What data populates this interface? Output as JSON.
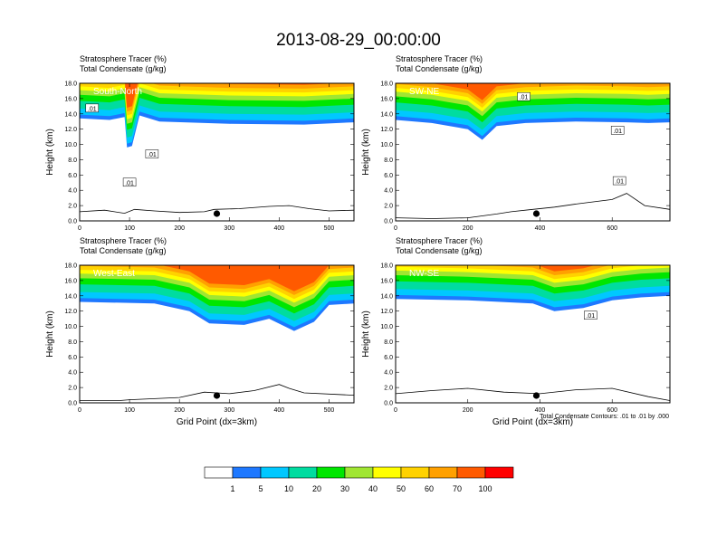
{
  "figure": {
    "title": "2013-08-29_00:00:00",
    "footnote": "Total Condensate Contours: .01 to .01 by .000"
  },
  "colors": {
    "levels": [
      "#ffffff",
      "#1e78ff",
      "#00c8ff",
      "#00dca0",
      "#00e600",
      "#a0e632",
      "#ffff00",
      "#ffd200",
      "#ffa000",
      "#ff5a00",
      "#ff0000"
    ]
  },
  "colorbar": {
    "labels": [
      "1",
      "5",
      "10",
      "20",
      "30",
      "40",
      "50",
      "60",
      "70",
      "100"
    ]
  },
  "chart_data": [
    {
      "type": "heatmap",
      "name": "South-North",
      "subtitle_1": "Stratosphere Tracer   (%)",
      "subtitle_2": "Total Condensate   (g/kg)",
      "ylabel": "Height (km)",
      "xlabel": "",
      "xlim": [
        0,
        550
      ],
      "ylim": [
        0,
        18
      ],
      "xticks": [
        "0",
        "100",
        "200",
        "300",
        "400",
        "500"
      ],
      "xtick_values": [
        0,
        100,
        200,
        300,
        400,
        500
      ],
      "yticks": [
        "0.0",
        "2.0",
        "4.0",
        "6.0",
        "8.0",
        "10.0",
        "12.0",
        "14.0",
        "16.0",
        "18.0"
      ],
      "tracer_base_km": [
        [
          0,
          13.4
        ],
        [
          60,
          13.2
        ],
        [
          90,
          13.6
        ],
        [
          95,
          9.6
        ],
        [
          105,
          9.8
        ],
        [
          120,
          13.8
        ],
        [
          160,
          13.0
        ],
        [
          300,
          12.7
        ],
        [
          450,
          12.6
        ],
        [
          550,
          12.9
        ]
      ],
      "terrain_km": [
        [
          0,
          1.2
        ],
        [
          50,
          1.4
        ],
        [
          90,
          1.0
        ],
        [
          110,
          1.5
        ],
        [
          150,
          1.3
        ],
        [
          200,
          1.1
        ],
        [
          250,
          1.2
        ],
        [
          270,
          1.5
        ],
        [
          320,
          1.6
        ],
        [
          380,
          1.9
        ],
        [
          420,
          2.0
        ],
        [
          460,
          1.6
        ],
        [
          500,
          1.3
        ],
        [
          550,
          1.4
        ]
      ],
      "contour_labels": [
        ".01",
        ".01",
        ".01"
      ],
      "contour_label_pos": [
        [
          25,
          14.7
        ],
        [
          100,
          5.0
        ],
        [
          145,
          8.7
        ]
      ],
      "marker_x": 275
    },
    {
      "type": "heatmap",
      "name": "SW-NE",
      "subtitle_1": "Stratosphere Tracer   (%)",
      "subtitle_2": "Total Condensate   (g/kg)",
      "ylabel": "Height (km)",
      "xlabel": "",
      "xlim": [
        0,
        760
      ],
      "ylim": [
        0,
        18
      ],
      "xticks": [
        "0",
        "200",
        "400",
        "600"
      ],
      "xtick_values": [
        0,
        200,
        400,
        600
      ],
      "yticks": [
        "0.0",
        "2.0",
        "4.0",
        "6.0",
        "8.0",
        "10.0",
        "12.0",
        "14.0",
        "16.0",
        "18.0"
      ],
      "tracer_base_km": [
        [
          0,
          13.2
        ],
        [
          100,
          12.8
        ],
        [
          200,
          12.0
        ],
        [
          240,
          10.6
        ],
        [
          280,
          12.4
        ],
        [
          360,
          12.8
        ],
        [
          500,
          13.0
        ],
        [
          640,
          12.9
        ],
        [
          700,
          12.8
        ],
        [
          760,
          12.9
        ]
      ],
      "terrain_km": [
        [
          0,
          0.4
        ],
        [
          100,
          0.3
        ],
        [
          200,
          0.4
        ],
        [
          280,
          0.9
        ],
        [
          320,
          1.2
        ],
        [
          380,
          1.5
        ],
        [
          440,
          1.8
        ],
        [
          500,
          2.2
        ],
        [
          600,
          2.8
        ],
        [
          640,
          3.6
        ],
        [
          690,
          2.0
        ],
        [
          760,
          1.5
        ]
      ],
      "contour_labels": [
        ".01",
        ".01",
        ".01"
      ],
      "contour_label_pos": [
        [
          355,
          16.2
        ],
        [
          615,
          11.8
        ],
        [
          620,
          5.2
        ]
      ],
      "marker_x": 390
    },
    {
      "type": "heatmap",
      "name": "West-East",
      "subtitle_1": "Stratosphere Tracer   (%)",
      "subtitle_2": "Total Condensate   (g/kg)",
      "ylabel": "Height (km)",
      "xlabel": "Grid Point (dx=3km)",
      "xlim": [
        0,
        550
      ],
      "ylim": [
        0,
        18
      ],
      "xticks": [
        "0",
        "100",
        "200",
        "300",
        "400",
        "500"
      ],
      "xtick_values": [
        0,
        100,
        200,
        300,
        400,
        500
      ],
      "yticks": [
        "0.0",
        "2.0",
        "4.0",
        "6.0",
        "8.0",
        "10.0",
        "12.0",
        "14.0",
        "16.0",
        "18.0"
      ],
      "tracer_base_km": [
        [
          0,
          13.2
        ],
        [
          150,
          13.0
        ],
        [
          220,
          12.0
        ],
        [
          260,
          10.4
        ],
        [
          330,
          10.2
        ],
        [
          380,
          11.0
        ],
        [
          430,
          9.4
        ],
        [
          470,
          10.6
        ],
        [
          500,
          12.8
        ],
        [
          550,
          13.0
        ]
      ],
      "terrain_km": [
        [
          0,
          0.3
        ],
        [
          80,
          0.3
        ],
        [
          100,
          0.4
        ],
        [
          200,
          0.7
        ],
        [
          250,
          1.4
        ],
        [
          300,
          1.2
        ],
        [
          350,
          1.6
        ],
        [
          400,
          2.4
        ],
        [
          420,
          1.9
        ],
        [
          450,
          1.3
        ],
        [
          550,
          1.0
        ]
      ],
      "contour_labels": [],
      "contour_label_pos": [],
      "marker_x": 275
    },
    {
      "type": "heatmap",
      "name": "NW-SE",
      "subtitle_1": "Stratosphere Tracer   (%)",
      "subtitle_2": "Total Condensate   (g/kg)",
      "ylabel": "Height (km)",
      "xlabel": "Grid Point (dx=3km)",
      "xlim": [
        0,
        760
      ],
      "ylim": [
        0,
        18
      ],
      "xticks": [
        "0",
        "200",
        "400",
        "600"
      ],
      "xtick_values": [
        0,
        200,
        400,
        600
      ],
      "yticks": [
        "0.0",
        "2.0",
        "4.0",
        "6.0",
        "8.0",
        "10.0",
        "12.0",
        "14.0",
        "16.0",
        "18.0"
      ],
      "tracer_base_km": [
        [
          0,
          13.6
        ],
        [
          200,
          13.4
        ],
        [
          380,
          13.0
        ],
        [
          440,
          12.0
        ],
        [
          520,
          12.4
        ],
        [
          600,
          13.4
        ],
        [
          680,
          13.8
        ],
        [
          760,
          14.0
        ]
      ],
      "terrain_km": [
        [
          0,
          1.2
        ],
        [
          100,
          1.6
        ],
        [
          200,
          1.9
        ],
        [
          300,
          1.4
        ],
        [
          400,
          1.2
        ],
        [
          500,
          1.7
        ],
        [
          600,
          1.9
        ],
        [
          700,
          0.8
        ],
        [
          760,
          0.3
        ]
      ],
      "contour_labels": [
        ".01"
      ],
      "contour_label_pos": [
        [
          540,
          11.4
        ]
      ],
      "marker_x": 390
    }
  ]
}
